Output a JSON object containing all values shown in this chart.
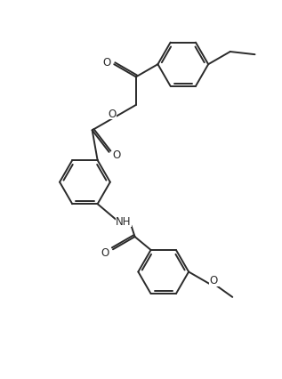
{
  "bg_color": "#ffffff",
  "line_color": "#2a2a2a",
  "lw": 1.4,
  "fig_width": 3.17,
  "fig_height": 4.27,
  "dpi": 100,
  "fs": 8.5,
  "xlim": [
    0,
    10
  ],
  "ylim": [
    0,
    13.5
  ],
  "ring_r": 0.9,
  "label_NH": "NH",
  "label_O": "O"
}
